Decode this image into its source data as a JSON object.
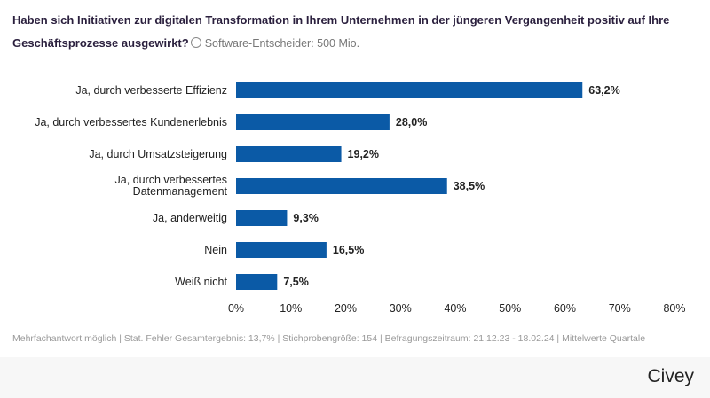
{
  "header": {
    "title": "Haben sich Initiativen zur digitalen Transformation in Ihrem Unternehmen in der jüngeren Vergangenheit positiv auf Ihre Geschäftsprozesse ausgewirkt?",
    "subtitle": "Software-Entscheider: 500 Mio."
  },
  "chart_data": {
    "type": "bar",
    "orientation": "horizontal",
    "categories": [
      "Ja, durch verbesserte Effizienz",
      "Ja, durch verbessertes Kundenerlebnis",
      "Ja, durch Umsatzsteigerung",
      "Ja, durch verbessertes Datenmanagement",
      "Ja, anderweitig",
      "Nein",
      "Weiß nicht"
    ],
    "values": [
      63.2,
      28.0,
      19.2,
      38.5,
      9.3,
      16.5,
      7.5
    ],
    "value_labels": [
      "63,2%",
      "28,0%",
      "19,2%",
      "38,5%",
      "9,3%",
      "16,5%",
      "7,5%"
    ],
    "xlim": [
      0,
      80
    ],
    "xticks": [
      "0%",
      "10%",
      "20%",
      "30%",
      "40%",
      "50%",
      "60%",
      "70%",
      "80%"
    ],
    "grid": false,
    "bar_color": "#0b5aa6"
  },
  "footer": {
    "note": "Mehrfachantwort möglich | Stat. Fehler Gesamtergebnis: 13,7% | Stichprobengröße: 154 | Befragungszeitraum: 21.12.23 - 18.02.24 | Mittelwerte Quartale",
    "brand": "Civey"
  }
}
